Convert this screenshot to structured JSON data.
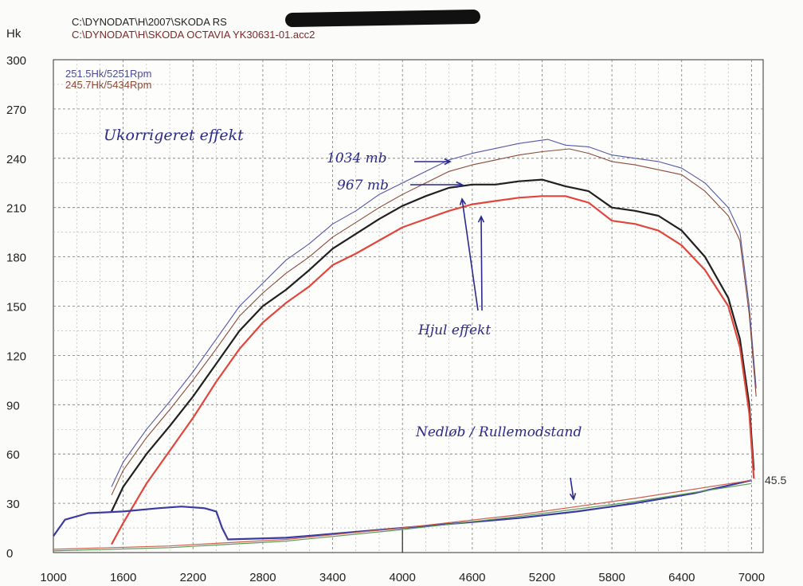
{
  "header": {
    "file1": "C:\\DYNODAT\\H\\2007\\SKODA RS",
    "file2": "C:\\DYNODAT\\H\\SKODA OCTAVIA YK30631-01.acc2"
  },
  "chart_data": {
    "type": "line",
    "ylabel": "Hk",
    "xlim": [
      1000,
      7100
    ],
    "ylim": [
      0,
      300
    ],
    "x_ticks": [
      1000,
      1600,
      2200,
      2800,
      3400,
      4000,
      4600,
      5200,
      5800,
      6400,
      7000
    ],
    "y_ticks": [
      0,
      30,
      60,
      90,
      120,
      150,
      180,
      210,
      240,
      270,
      300
    ],
    "grid": true,
    "legend": [
      {
        "label": "251.5Hk/5251Rpm",
        "color": "#4a4a9a"
      },
      {
        "label": "245.7Hk/5434Rpm",
        "color": "#8a4a3a"
      }
    ],
    "end_label": "45.5",
    "annotations": [
      {
        "text": "Ukorrigeret effekt"
      },
      {
        "text": "1034 mb"
      },
      {
        "text": "967 mb"
      },
      {
        "text": "Hjul effekt"
      },
      {
        "text": "Nedløb / Rullemodstand"
      }
    ],
    "series": [
      {
        "id": "uncorr_1034",
        "color": "#5656a8",
        "width": 1.1,
        "x": [
          1500,
          1600,
          1800,
          2000,
          2200,
          2400,
          2600,
          2800,
          3000,
          3200,
          3400,
          3600,
          3800,
          4000,
          4200,
          4400,
          4600,
          4800,
          5000,
          5200,
          5251,
          5400,
          5600,
          5800,
          6000,
          6200,
          6400,
          6600,
          6800,
          6900,
          6980,
          7040
        ],
        "y": [
          40,
          55,
          75,
          92,
          110,
          130,
          150,
          164,
          178,
          188,
          200,
          208,
          218,
          225,
          232,
          239,
          243,
          246,
          249,
          251,
          251.5,
          248,
          247,
          242,
          240,
          238,
          234,
          225,
          210,
          195,
          150,
          100
        ]
      },
      {
        "id": "uncorr_967",
        "color": "#8a4a3a",
        "width": 1.1,
        "x": [
          1500,
          1600,
          1800,
          2000,
          2200,
          2400,
          2600,
          2800,
          3000,
          3200,
          3400,
          3600,
          3800,
          4000,
          4200,
          4400,
          4600,
          4800,
          5000,
          5200,
          5434,
          5600,
          5800,
          6000,
          6200,
          6400,
          6600,
          6800,
          6900,
          6980,
          7040
        ],
        "y": [
          35,
          50,
          70,
          87,
          105,
          124,
          144,
          158,
          170,
          180,
          192,
          201,
          210,
          218,
          225,
          232,
          236,
          239,
          242,
          244,
          245.7,
          243,
          238,
          236,
          233,
          230,
          220,
          205,
          190,
          145,
          95
        ]
      },
      {
        "id": "wheel_black",
        "color": "#202020",
        "width": 2.2,
        "x": [
          1500,
          1600,
          1800,
          2000,
          2200,
          2400,
          2600,
          2800,
          3000,
          3200,
          3400,
          3600,
          3800,
          4000,
          4200,
          4400,
          4600,
          4800,
          5000,
          5200,
          5400,
          5600,
          5800,
          6000,
          6200,
          6400,
          6600,
          6800,
          6900,
          6980,
          7020
        ],
        "y": [
          25,
          40,
          60,
          77,
          95,
          115,
          135,
          150,
          160,
          172,
          185,
          194,
          203,
          211,
          217,
          222,
          224,
          224,
          226,
          227,
          223,
          220,
          210,
          208,
          205,
          196,
          180,
          155,
          130,
          90,
          50
        ]
      },
      {
        "id": "wheel_red",
        "color": "#e0463c",
        "width": 2.2,
        "x": [
          1500,
          1600,
          1800,
          2000,
          2200,
          2400,
          2600,
          2800,
          3000,
          3200,
          3400,
          3600,
          3800,
          4000,
          4200,
          4400,
          4600,
          4800,
          5000,
          5200,
          5400,
          5600,
          5800,
          6000,
          6200,
          6400,
          6600,
          6800,
          6900,
          6980,
          7020
        ],
        "y": [
          5,
          18,
          42,
          62,
          82,
          104,
          124,
          140,
          152,
          162,
          175,
          182,
          190,
          198,
          203,
          208,
          212,
          214,
          216,
          217,
          217,
          213,
          202,
          200,
          196,
          187,
          172,
          150,
          125,
          85,
          45
        ]
      },
      {
        "id": "coastdown_low",
        "color": "#3a3aa0",
        "width": 2.2,
        "x": [
          1000,
          1100,
          1300,
          1600,
          1900,
          2100,
          2300,
          2400,
          2450,
          2500,
          3000,
          3500,
          4000,
          4500,
          5000,
          5500,
          6000,
          6500,
          7000
        ],
        "y": [
          10,
          20,
          24,
          25,
          27,
          28,
          27,
          25,
          15,
          8,
          9,
          12,
          15,
          18,
          21,
          25,
          30,
          36,
          44
        ]
      },
      {
        "id": "coastdown_green",
        "color": "#5a9a5a",
        "width": 1.2,
        "x": [
          1000,
          2000,
          3000,
          4000,
          5000,
          6000,
          7000
        ],
        "y": [
          1,
          3,
          7,
          14,
          22,
          31,
          42
        ]
      },
      {
        "id": "coastdown_red",
        "color": "#d06050",
        "width": 1.2,
        "x": [
          1000,
          2000,
          3000,
          4000,
          5000,
          6000,
          7000
        ],
        "y": [
          2,
          4,
          8,
          15,
          23,
          33,
          44
        ]
      }
    ]
  }
}
